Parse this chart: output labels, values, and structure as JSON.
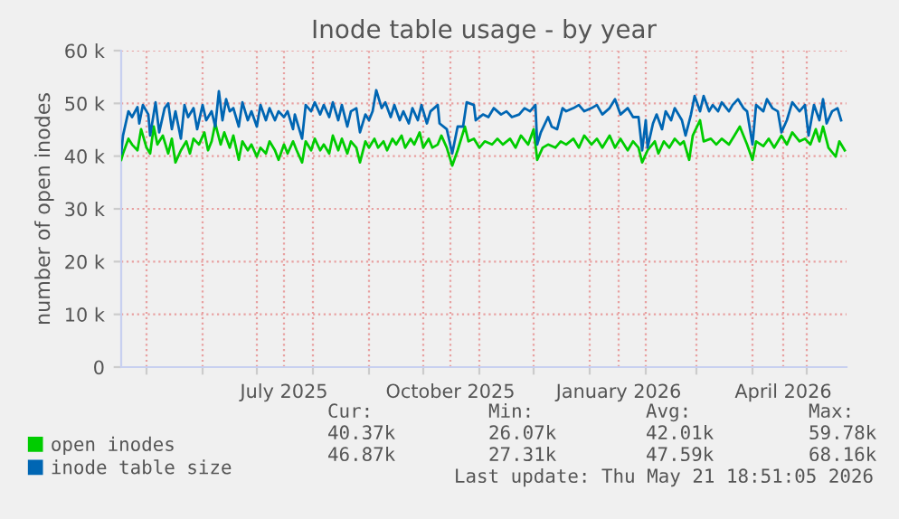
{
  "chart_data": {
    "type": "line",
    "title": "Inode table usage - by year",
    "ylabel": "number of open inodes",
    "xlim": [
      "2025-04-17",
      "2026-05-23"
    ],
    "xticks": [
      {
        "value": "2025-05-01",
        "label": null
      },
      {
        "value": "2025-06-01",
        "label": null
      },
      {
        "value": "2025-07-01",
        "label": null
      },
      {
        "value": "2025-07-16",
        "label": "July 2025"
      },
      {
        "value": "2025-08-01",
        "label": null
      },
      {
        "value": "2025-09-01",
        "label": null
      },
      {
        "value": "2025-10-01",
        "label": null
      },
      {
        "value": "2025-10-16",
        "label": "October 2025"
      },
      {
        "value": "2025-11-01",
        "label": null
      },
      {
        "value": "2025-12-01",
        "label": null
      },
      {
        "value": "2026-01-01",
        "label": null
      },
      {
        "value": "2026-01-17",
        "label": "January 2026"
      },
      {
        "value": "2026-02-01",
        "label": null
      },
      {
        "value": "2026-03-01",
        "label": null
      },
      {
        "value": "2026-04-01",
        "label": null
      },
      {
        "value": "2026-04-18",
        "label": "April 2026"
      },
      {
        "value": "2026-05-01",
        "label": null
      }
    ],
    "ylim": [
      0,
      60000
    ],
    "yticks": [
      0,
      {
        "value": 10000,
        "label": "10 k"
      },
      {
        "value": 20000,
        "label": "20 k"
      },
      {
        "value": 30000,
        "label": "30 k"
      },
      {
        "value": 40000,
        "label": "40 k"
      },
      {
        "value": 50000,
        "label": "50 k"
      },
      {
        "value": 60000,
        "label": "60 k"
      }
    ],
    "grid": true,
    "legend": "bottom",
    "marker": "none",
    "line_style": "solid",
    "series": [
      {
        "name": "open inodes",
        "color": "#00cc00",
        "x": [
          "2025-04-17",
          "2025-04-18",
          "2025-04-21",
          "2025-04-23",
          "2025-04-26",
          "2025-04-28",
          "2025-05-01",
          "2025-05-03",
          "2025-05-05",
          "2025-05-07",
          "2025-05-10",
          "2025-05-13",
          "2025-05-15",
          "2025-05-17",
          "2025-05-20",
          "2025-05-23",
          "2025-05-25",
          "2025-05-27",
          "2025-05-30",
          "2025-06-02",
          "2025-06-04",
          "2025-06-06",
          "2025-06-08",
          "2025-06-11",
          "2025-06-13",
          "2025-06-16",
          "2025-06-18",
          "2025-06-21",
          "2025-06-23",
          "2025-06-26",
          "2025-06-28",
          "2025-07-01",
          "2025-07-03",
          "2025-07-06",
          "2025-07-08",
          "2025-07-11",
          "2025-07-13",
          "2025-07-16",
          "2025-07-18",
          "2025-07-21",
          "2025-07-23",
          "2025-07-26",
          "2025-07-28",
          "2025-07-31",
          "2025-08-02",
          "2025-08-05",
          "2025-08-07",
          "2025-08-10",
          "2025-08-12",
          "2025-08-15",
          "2025-08-17",
          "2025-08-20",
          "2025-08-22",
          "2025-08-25",
          "2025-08-27",
          "2025-08-30",
          "2025-09-01",
          "2025-09-04",
          "2025-09-06",
          "2025-09-09",
          "2025-09-11",
          "2025-09-14",
          "2025-09-16",
          "2025-09-19",
          "2025-09-21",
          "2025-09-24",
          "2025-09-26",
          "2025-09-29",
          "2025-10-01",
          "2025-10-04",
          "2025-10-06",
          "2025-10-09",
          "2025-10-11",
          "2025-10-14",
          "2025-10-17",
          "2025-10-20",
          "2025-10-24",
          "2025-10-26",
          "2025-10-29",
          "2025-11-01",
          "2025-11-04",
          "2025-11-08",
          "2025-11-11",
          "2025-11-14",
          "2025-11-18",
          "2025-11-21",
          "2025-11-24",
          "2025-11-28",
          "2025-12-01",
          "2025-12-03",
          "2025-12-06",
          "2025-12-09",
          "2025-12-13",
          "2025-12-16",
          "2025-12-19",
          "2025-12-23",
          "2025-12-26",
          "2025-12-29",
          "2026-01-02",
          "2026-01-05",
          "2026-01-08",
          "2026-01-12",
          "2026-01-15",
          "2026-01-18",
          "2026-01-22",
          "2026-01-25",
          "2026-01-28",
          "2026-01-30",
          "2026-02-02",
          "2026-02-06",
          "2026-02-08",
          "2026-02-11",
          "2026-02-14",
          "2026-02-17",
          "2026-02-20",
          "2026-02-22",
          "2026-02-25",
          "2026-02-27",
          "2026-03-03",
          "2026-03-05",
          "2026-03-09",
          "2026-03-12",
          "2026-03-15",
          "2026-03-19",
          "2026-03-22",
          "2026-03-25",
          "2026-03-29",
          "2026-04-01",
          "2026-04-03",
          "2026-04-07",
          "2026-04-10",
          "2026-04-13",
          "2026-04-17",
          "2026-04-20",
          "2026-04-23",
          "2026-04-27",
          "2026-04-30",
          "2026-05-03",
          "2026-05-06",
          "2026-05-08",
          "2026-05-10",
          "2026-05-13",
          "2026-05-17",
          "2026-05-19",
          "2026-05-22"
        ],
        "values": [
          39300,
          40500,
          43300,
          42200,
          41100,
          45100,
          41600,
          40500,
          45600,
          42200,
          43900,
          40500,
          43300,
          38800,
          41100,
          42800,
          40500,
          43300,
          42200,
          44500,
          41100,
          42800,
          46200,
          42200,
          44500,
          41600,
          43900,
          39300,
          42800,
          41100,
          42200,
          39900,
          41600,
          40500,
          42800,
          41100,
          39300,
          42200,
          40500,
          42800,
          41100,
          38800,
          42800,
          41100,
          43300,
          41100,
          42200,
          40500,
          43900,
          41100,
          43300,
          40500,
          42800,
          41600,
          38800,
          42800,
          41600,
          43300,
          41600,
          42800,
          41100,
          43300,
          42200,
          43900,
          41600,
          43300,
          42200,
          44500,
          41600,
          43300,
          41600,
          42200,
          43900,
          41600,
          38200,
          41100,
          45600,
          42800,
          43300,
          41600,
          42800,
          42200,
          43300,
          42200,
          43300,
          41600,
          43900,
          42200,
          45100,
          39300,
          41600,
          42200,
          41600,
          42800,
          42200,
          43300,
          41600,
          43900,
          42200,
          43300,
          41600,
          43900,
          41600,
          43300,
          41100,
          42800,
          41600,
          38800,
          41100,
          42800,
          40500,
          42800,
          41600,
          43300,
          42200,
          42800,
          39300,
          43900,
          46800,
          42800,
          43300,
          42200,
          43300,
          42200,
          43900,
          45600,
          42200,
          39300,
          42800,
          41900,
          43300,
          41600,
          43900,
          42200,
          44500,
          42800,
          43300,
          42200,
          45100,
          42800,
          45600,
          41600,
          39900,
          42800,
          41100
        ]
      },
      {
        "name": "inode table size",
        "color": "#0066b3",
        "x": [
          "2025-04-17",
          "2025-04-18",
          "2025-04-21",
          "2025-04-23",
          "2025-04-26",
          "2025-04-27",
          "2025-04-29",
          "2025-05-02",
          "2025-05-03",
          "2025-05-06",
          "2025-05-08",
          "2025-05-11",
          "2025-05-13",
          "2025-05-15",
          "2025-05-17",
          "2025-05-20",
          "2025-05-22",
          "2025-05-24",
          "2025-05-27",
          "2025-05-29",
          "2025-06-01",
          "2025-06-03",
          "2025-06-06",
          "2025-06-08",
          "2025-06-10",
          "2025-06-12",
          "2025-06-14",
          "2025-06-16",
          "2025-06-18",
          "2025-06-21",
          "2025-06-23",
          "2025-06-26",
          "2025-06-28",
          "2025-07-01",
          "2025-07-03",
          "2025-07-06",
          "2025-07-08",
          "2025-07-11",
          "2025-07-13",
          "2025-07-16",
          "2025-07-18",
          "2025-07-21",
          "2025-07-22",
          "2025-07-26",
          "2025-07-28",
          "2025-07-31",
          "2025-08-02",
          "2025-08-05",
          "2025-08-07",
          "2025-08-10",
          "2025-08-12",
          "2025-08-15",
          "2025-08-17",
          "2025-08-20",
          "2025-08-22",
          "2025-08-25",
          "2025-08-27",
          "2025-08-30",
          "2025-09-01",
          "2025-09-03",
          "2025-09-05",
          "2025-09-08",
          "2025-09-10",
          "2025-09-13",
          "2025-09-15",
          "2025-09-18",
          "2025-09-20",
          "2025-09-23",
          "2025-09-25",
          "2025-09-28",
          "2025-09-30",
          "2025-10-03",
          "2025-10-05",
          "2025-10-09",
          "2025-10-10",
          "2025-10-14",
          "2025-10-17",
          "2025-10-20",
          "2025-10-23",
          "2025-10-25",
          "2025-10-29",
          "2025-10-30",
          "2025-11-03",
          "2025-11-06",
          "2025-11-09",
          "2025-11-13",
          "2025-11-16",
          "2025-11-19",
          "2025-11-23",
          "2025-11-26",
          "2025-11-29",
          "2025-12-02",
          "2025-12-03",
          "2025-12-05",
          "2025-12-09",
          "2025-12-11",
          "2025-12-14",
          "2025-12-17",
          "2025-12-19",
          "2025-12-23",
          "2025-12-26",
          "2025-12-29",
          "2026-01-02",
          "2026-01-05",
          "2026-01-08",
          "2026-01-12",
          "2026-01-15",
          "2026-01-18",
          "2026-01-22",
          "2026-01-25",
          "2026-01-28",
          "2026-01-30",
          "2026-02-01",
          "2026-02-02",
          "2026-02-05",
          "2026-02-07",
          "2026-02-10",
          "2026-02-12",
          "2026-02-15",
          "2026-02-17",
          "2026-02-21",
          "2026-02-23",
          "2026-02-26",
          "2026-02-28",
          "2026-03-03",
          "2026-03-05",
          "2026-03-08",
          "2026-03-10",
          "2026-03-13",
          "2026-03-15",
          "2026-03-19",
          "2026-03-21",
          "2026-03-24",
          "2026-03-27",
          "2026-03-29",
          "2026-04-01",
          "2026-04-03",
          "2026-04-07",
          "2026-04-09",
          "2026-04-12",
          "2026-04-15",
          "2026-04-17",
          "2026-04-20",
          "2026-04-23",
          "2026-04-27",
          "2026-04-30",
          "2026-05-02",
          "2026-05-05",
          "2026-05-08",
          "2026-05-10",
          "2026-05-12",
          "2026-05-15",
          "2026-05-18",
          "2026-05-20"
        ],
        "values": [
          40500,
          43900,
          48500,
          47400,
          49300,
          46200,
          49700,
          47900,
          43900,
          50200,
          44500,
          49100,
          50000,
          45100,
          48500,
          43300,
          49700,
          47400,
          49100,
          45100,
          49700,
          46800,
          48500,
          45600,
          52300,
          46800,
          50800,
          48500,
          49100,
          45600,
          50200,
          46800,
          48500,
          45600,
          49700,
          46800,
          49100,
          46800,
          48500,
          47400,
          48500,
          45100,
          47900,
          43300,
          49700,
          48500,
          50200,
          47900,
          49700,
          47400,
          50200,
          46800,
          49700,
          45600,
          48500,
          49100,
          44500,
          47900,
          46800,
          48500,
          52500,
          49100,
          50200,
          47400,
          49700,
          46800,
          48500,
          46200,
          49100,
          46800,
          49700,
          46200,
          48500,
          49700,
          46200,
          45100,
          40500,
          45600,
          45600,
          50200,
          49700,
          46800,
          47900,
          47400,
          49100,
          47900,
          48500,
          47400,
          47900,
          49100,
          48500,
          49700,
          42200,
          44500,
          47400,
          45600,
          45100,
          49100,
          48500,
          49100,
          49700,
          48500,
          49100,
          49700,
          47900,
          49100,
          50800,
          47900,
          49100,
          47400,
          47400,
          41100,
          46800,
          41600,
          46200,
          47900,
          45100,
          48500,
          46800,
          49100,
          46800,
          43900,
          47900,
          51400,
          48500,
          51400,
          48500,
          49700,
          48500,
          50200,
          48500,
          49700,
          50800,
          49100,
          48500,
          42200,
          49700,
          48500,
          50800,
          49100,
          48500,
          44500,
          46800,
          50200,
          48500,
          49700,
          43900,
          49700,
          46800,
          50800,
          46200,
          48500,
          49100,
          46800
        ]
      }
    ],
    "annotations": [
      "Cur:",
      "Min:",
      "Avg:",
      "Max:",
      "40.37k",
      "26.07k",
      "42.01k",
      "59.78k",
      "46.87k",
      "27.31k",
      "47.59k",
      "68.16k",
      "Last update: Thu May 21 18:51:05 2026"
    ]
  }
}
